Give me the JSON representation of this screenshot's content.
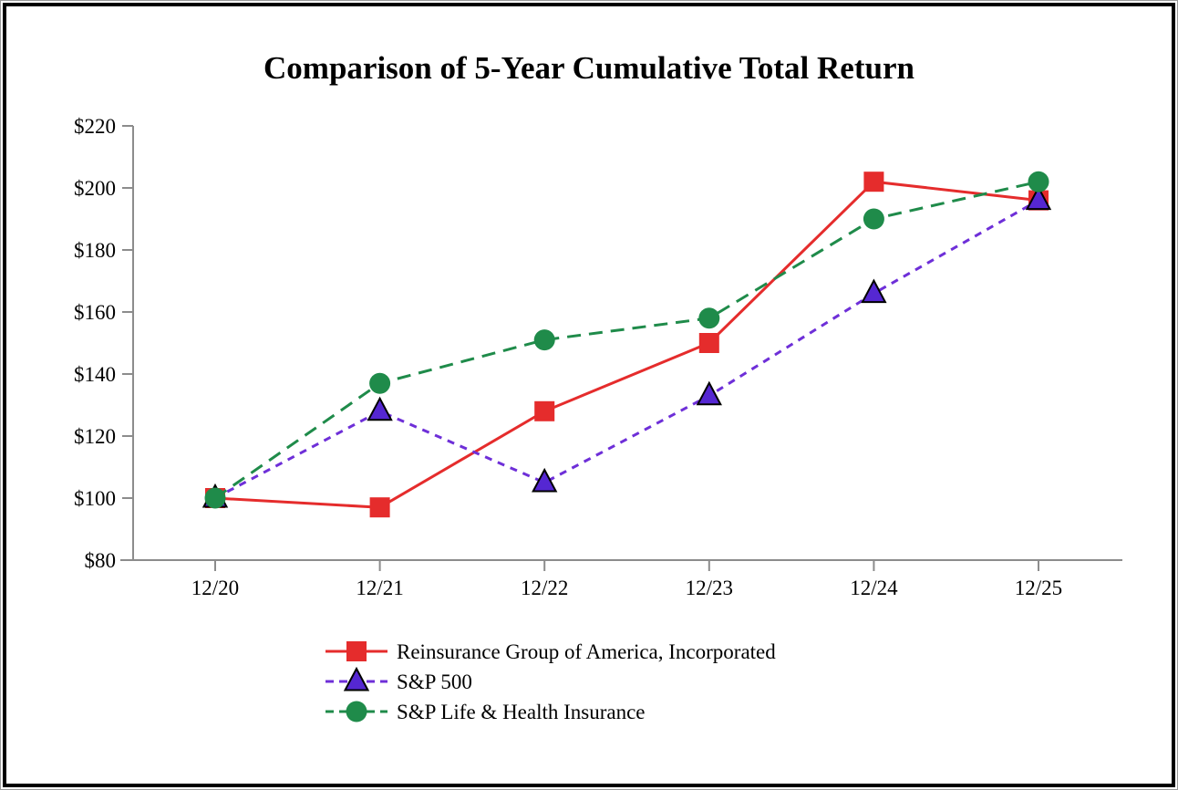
{
  "chart_data": {
    "type": "line",
    "title": "Comparison of 5-Year Cumulative Total Return",
    "categories": [
      "12/20",
      "12/21",
      "12/22",
      "12/23",
      "12/24",
      "12/25"
    ],
    "series": [
      {
        "name": "Reinsurance Group of America, Incorporated",
        "color": "#e52c2c",
        "marker": "square",
        "marker_fill": "#e52c2c",
        "marker_stroke": "none",
        "dash": null,
        "values": [
          100,
          97,
          128,
          150,
          202,
          196
        ]
      },
      {
        "name": "S&P 500",
        "color": "#6e2fd8",
        "marker": "triangle",
        "marker_fill": "#5527d2",
        "marker_stroke": "#000000",
        "dash": "8 7",
        "values": [
          100,
          128,
          105,
          133,
          166,
          196
        ]
      },
      {
        "name": "S&P Life & Health Insurance",
        "color": "#1f8b4a",
        "marker": "circle",
        "marker_fill": "#1f8b4a",
        "marker_stroke": "none",
        "dash": "15 9",
        "values": [
          100,
          137,
          151,
          158,
          190,
          202
        ]
      }
    ],
    "xlabel": "",
    "ylabel": "",
    "ylim": [
      80,
      220
    ],
    "y_ticks": [
      220,
      200,
      180,
      160,
      140,
      120,
      100,
      80
    ],
    "y_tick_labels": [
      "$220",
      "$200",
      "$180",
      "$160",
      "$140",
      "$120",
      "$100",
      "$80"
    ],
    "grid": false,
    "legend_position": "bottom",
    "axis_color": "#8c8c8c",
    "text_color": "#000000"
  }
}
